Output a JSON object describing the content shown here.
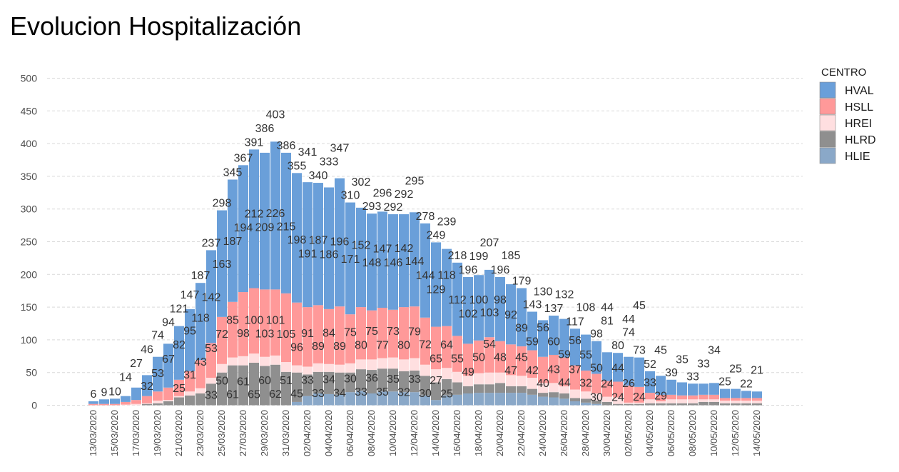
{
  "chart_data": {
    "type": "bar",
    "stacked": true,
    "title": "Evolucion Hospitalización",
    "xlabel": "",
    "ylabel": "",
    "ylim": [
      0,
      500
    ],
    "y_ticks": [
      0,
      50,
      100,
      150,
      200,
      250,
      300,
      350,
      400,
      450,
      500
    ],
    "grid": "horizontal dashed",
    "legend": {
      "title": "CENTRO",
      "position": "right"
    },
    "categories": [
      "13/03/2020",
      "14/03/2020",
      "15/03/2020",
      "16/03/2020",
      "17/03/2020",
      "18/03/2020",
      "19/03/2020",
      "20/03/2020",
      "21/03/2020",
      "22/03/2020",
      "23/03/2020",
      "24/03/2020",
      "25/03/2020",
      "26/03/2020",
      "27/03/2020",
      "28/03/2020",
      "29/03/2020",
      "30/03/2020",
      "31/03/2020",
      "01/04/2020",
      "02/04/2020",
      "03/04/2020",
      "04/04/2020",
      "05/04/2020",
      "06/04/2020",
      "07/04/2020",
      "08/04/2020",
      "09/04/2020",
      "10/04/2020",
      "11/04/2020",
      "12/04/2020",
      "13/04/2020",
      "14/04/2020",
      "15/04/2020",
      "16/04/2020",
      "17/04/2020",
      "18/04/2020",
      "19/04/2020",
      "20/04/2020",
      "21/04/2020",
      "22/04/2020",
      "23/04/2020",
      "24/04/2020",
      "25/04/2020",
      "26/04/2020",
      "27/04/2020",
      "28/04/2020",
      "29/04/2020",
      "30/04/2020",
      "01/05/2020",
      "02/05/2020",
      "03/05/2020",
      "04/05/2020",
      "05/05/2020",
      "06/05/2020",
      "07/05/2020",
      "08/05/2020",
      "09/05/2020",
      "10/05/2020",
      "11/05/2020",
      "12/05/2020",
      "13/05/2020",
      "14/05/2020"
    ],
    "x_tick_labels": [
      "13/03/2020",
      "15/03/2020",
      "17/03/2020",
      "19/03/2020",
      "21/03/2020",
      "23/03/2020",
      "25/03/2020",
      "27/03/2020",
      "29/03/2020",
      "31/03/2020",
      "02/04/2020",
      "04/04/2020",
      "06/04/2020",
      "08/04/2020",
      "10/04/2020",
      "12/04/2020",
      "14/04/2020",
      "16/04/2020",
      "18/04/2020",
      "20/04/2020",
      "22/04/2020",
      "24/04/2020",
      "26/04/2020",
      "28/04/2020",
      "30/04/2020",
      "02/05/2020",
      "04/05/2020",
      "06/05/2020",
      "08/05/2020",
      "10/05/2020",
      "12/05/2020",
      "14/05/2020"
    ],
    "series": [
      {
        "name": "HVAL",
        "color": "#6a9fd9",
        "values": [
          4,
          7,
          8,
          9,
          19,
          32,
          53,
          67,
          82,
          95,
          118,
          142,
          163,
          187,
          194,
          212,
          209,
          226,
          215,
          198,
          191,
          187,
          186,
          196,
          171,
          152,
          148,
          147,
          146,
          142,
          144,
          144,
          129,
          118,
          112,
          102,
          100,
          103,
          98,
          92,
          89,
          59,
          56,
          60,
          59,
          56,
          55,
          50,
          44,
          44,
          44,
          45,
          33,
          29,
          23,
          20,
          18,
          17,
          18,
          14,
          14,
          11,
          10
        ]
      },
      {
        "name": "HSLL",
        "color": "#ff9999",
        "values": [
          2,
          2,
          2,
          4,
          6,
          11,
          14,
          19,
          25,
          31,
          43,
          53,
          72,
          85,
          98,
          100,
          103,
          101,
          105,
          96,
          91,
          89,
          84,
          89,
          75,
          80,
          75,
          77,
          73,
          80,
          79,
          72,
          65,
          64,
          55,
          49,
          50,
          54,
          48,
          47,
          45,
          42,
          40,
          43,
          44,
          37,
          32,
          30,
          24,
          24,
          26,
          24,
          10,
          10,
          7,
          6,
          6,
          7,
          7,
          4,
          4,
          4,
          4
        ]
      },
      {
        "name": "HREI",
        "color": "#ffdfe0",
        "values": [
          0,
          0,
          0,
          1,
          2,
          1,
          4,
          2,
          2,
          6,
          8,
          9,
          13,
          12,
          14,
          14,
          14,
          14,
          15,
          11,
          12,
          13,
          12,
          12,
          14,
          15,
          16,
          16,
          17,
          18,
          19,
          17,
          20,
          17,
          16,
          16,
          17,
          18,
          16,
          17,
          16,
          17,
          15,
          14,
          11,
          13,
          11,
          11,
          8,
          10,
          2,
          2,
          6,
          3,
          6,
          6,
          6,
          4,
          4,
          4,
          4,
          4,
          4
        ]
      },
      {
        "name": "HLRD",
        "color": "#8f8f8f",
        "values": [
          0,
          0,
          0,
          0,
          0,
          2,
          3,
          6,
          12,
          15,
          18,
          33,
          50,
          61,
          61,
          65,
          60,
          62,
          51,
          45,
          33,
          33,
          34,
          34,
          30,
          33,
          36,
          35,
          35,
          32,
          33,
          30,
          27,
          25,
          19,
          11,
          13,
          13,
          15,
          10,
          10,
          9,
          6,
          8,
          8,
          5,
          6,
          5,
          5,
          2,
          2,
          2,
          3,
          3,
          3,
          3,
          3,
          5,
          5,
          3,
          3,
          3,
          3
        ]
      },
      {
        "name": "HLIE",
        "color": "#8aa8c8",
        "values": [
          0,
          0,
          0,
          0,
          0,
          0,
          0,
          0,
          0,
          0,
          0,
          0,
          0,
          0,
          0,
          0,
          0,
          0,
          0,
          5,
          14,
          18,
          17,
          16,
          20,
          22,
          18,
          21,
          21,
          20,
          20,
          15,
          8,
          15,
          16,
          18,
          19,
          19,
          19,
          19,
          19,
          16,
          13,
          12,
          10,
          6,
          4,
          2,
          0,
          0,
          0,
          0,
          0,
          0,
          0,
          0,
          0,
          0,
          0,
          0,
          0,
          0,
          0
        ]
      }
    ]
  }
}
